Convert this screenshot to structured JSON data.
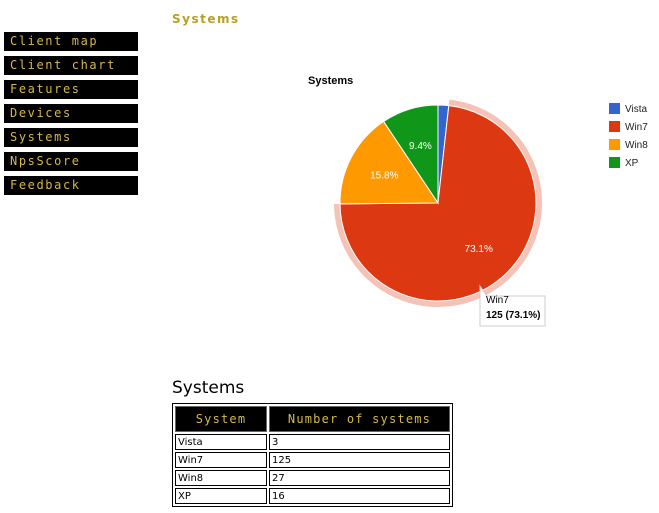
{
  "page": {
    "title": "Systems"
  },
  "sidebar": {
    "items": [
      {
        "label": "Client map"
      },
      {
        "label": "Client chart"
      },
      {
        "label": "Features"
      },
      {
        "label": "Devices"
      },
      {
        "label": "Systems"
      },
      {
        "label": "NpsScore"
      },
      {
        "label": "Feedback"
      }
    ]
  },
  "tooltip": {
    "name": "Win7",
    "value": "125 (73.1%)"
  },
  "chart_data": {
    "type": "pie",
    "title": "Systems",
    "categories": [
      "Vista",
      "Win7",
      "Win8",
      "XP"
    ],
    "values": [
      3,
      125,
      27,
      16
    ],
    "percent_labels": [
      "",
      "73.1%",
      "15.8%",
      "9.4%"
    ],
    "colors": [
      "#3366cc",
      "#dc3912",
      "#ff9900",
      "#109618"
    ],
    "legend_position": "right",
    "highlighted": "Win7"
  },
  "table": {
    "title": "Systems",
    "headers": [
      "System",
      "Number of systems"
    ],
    "rows": [
      [
        "Vista",
        "3"
      ],
      [
        "Win7",
        "125"
      ],
      [
        "Win8",
        "27"
      ],
      [
        "XP",
        "16"
      ]
    ]
  }
}
